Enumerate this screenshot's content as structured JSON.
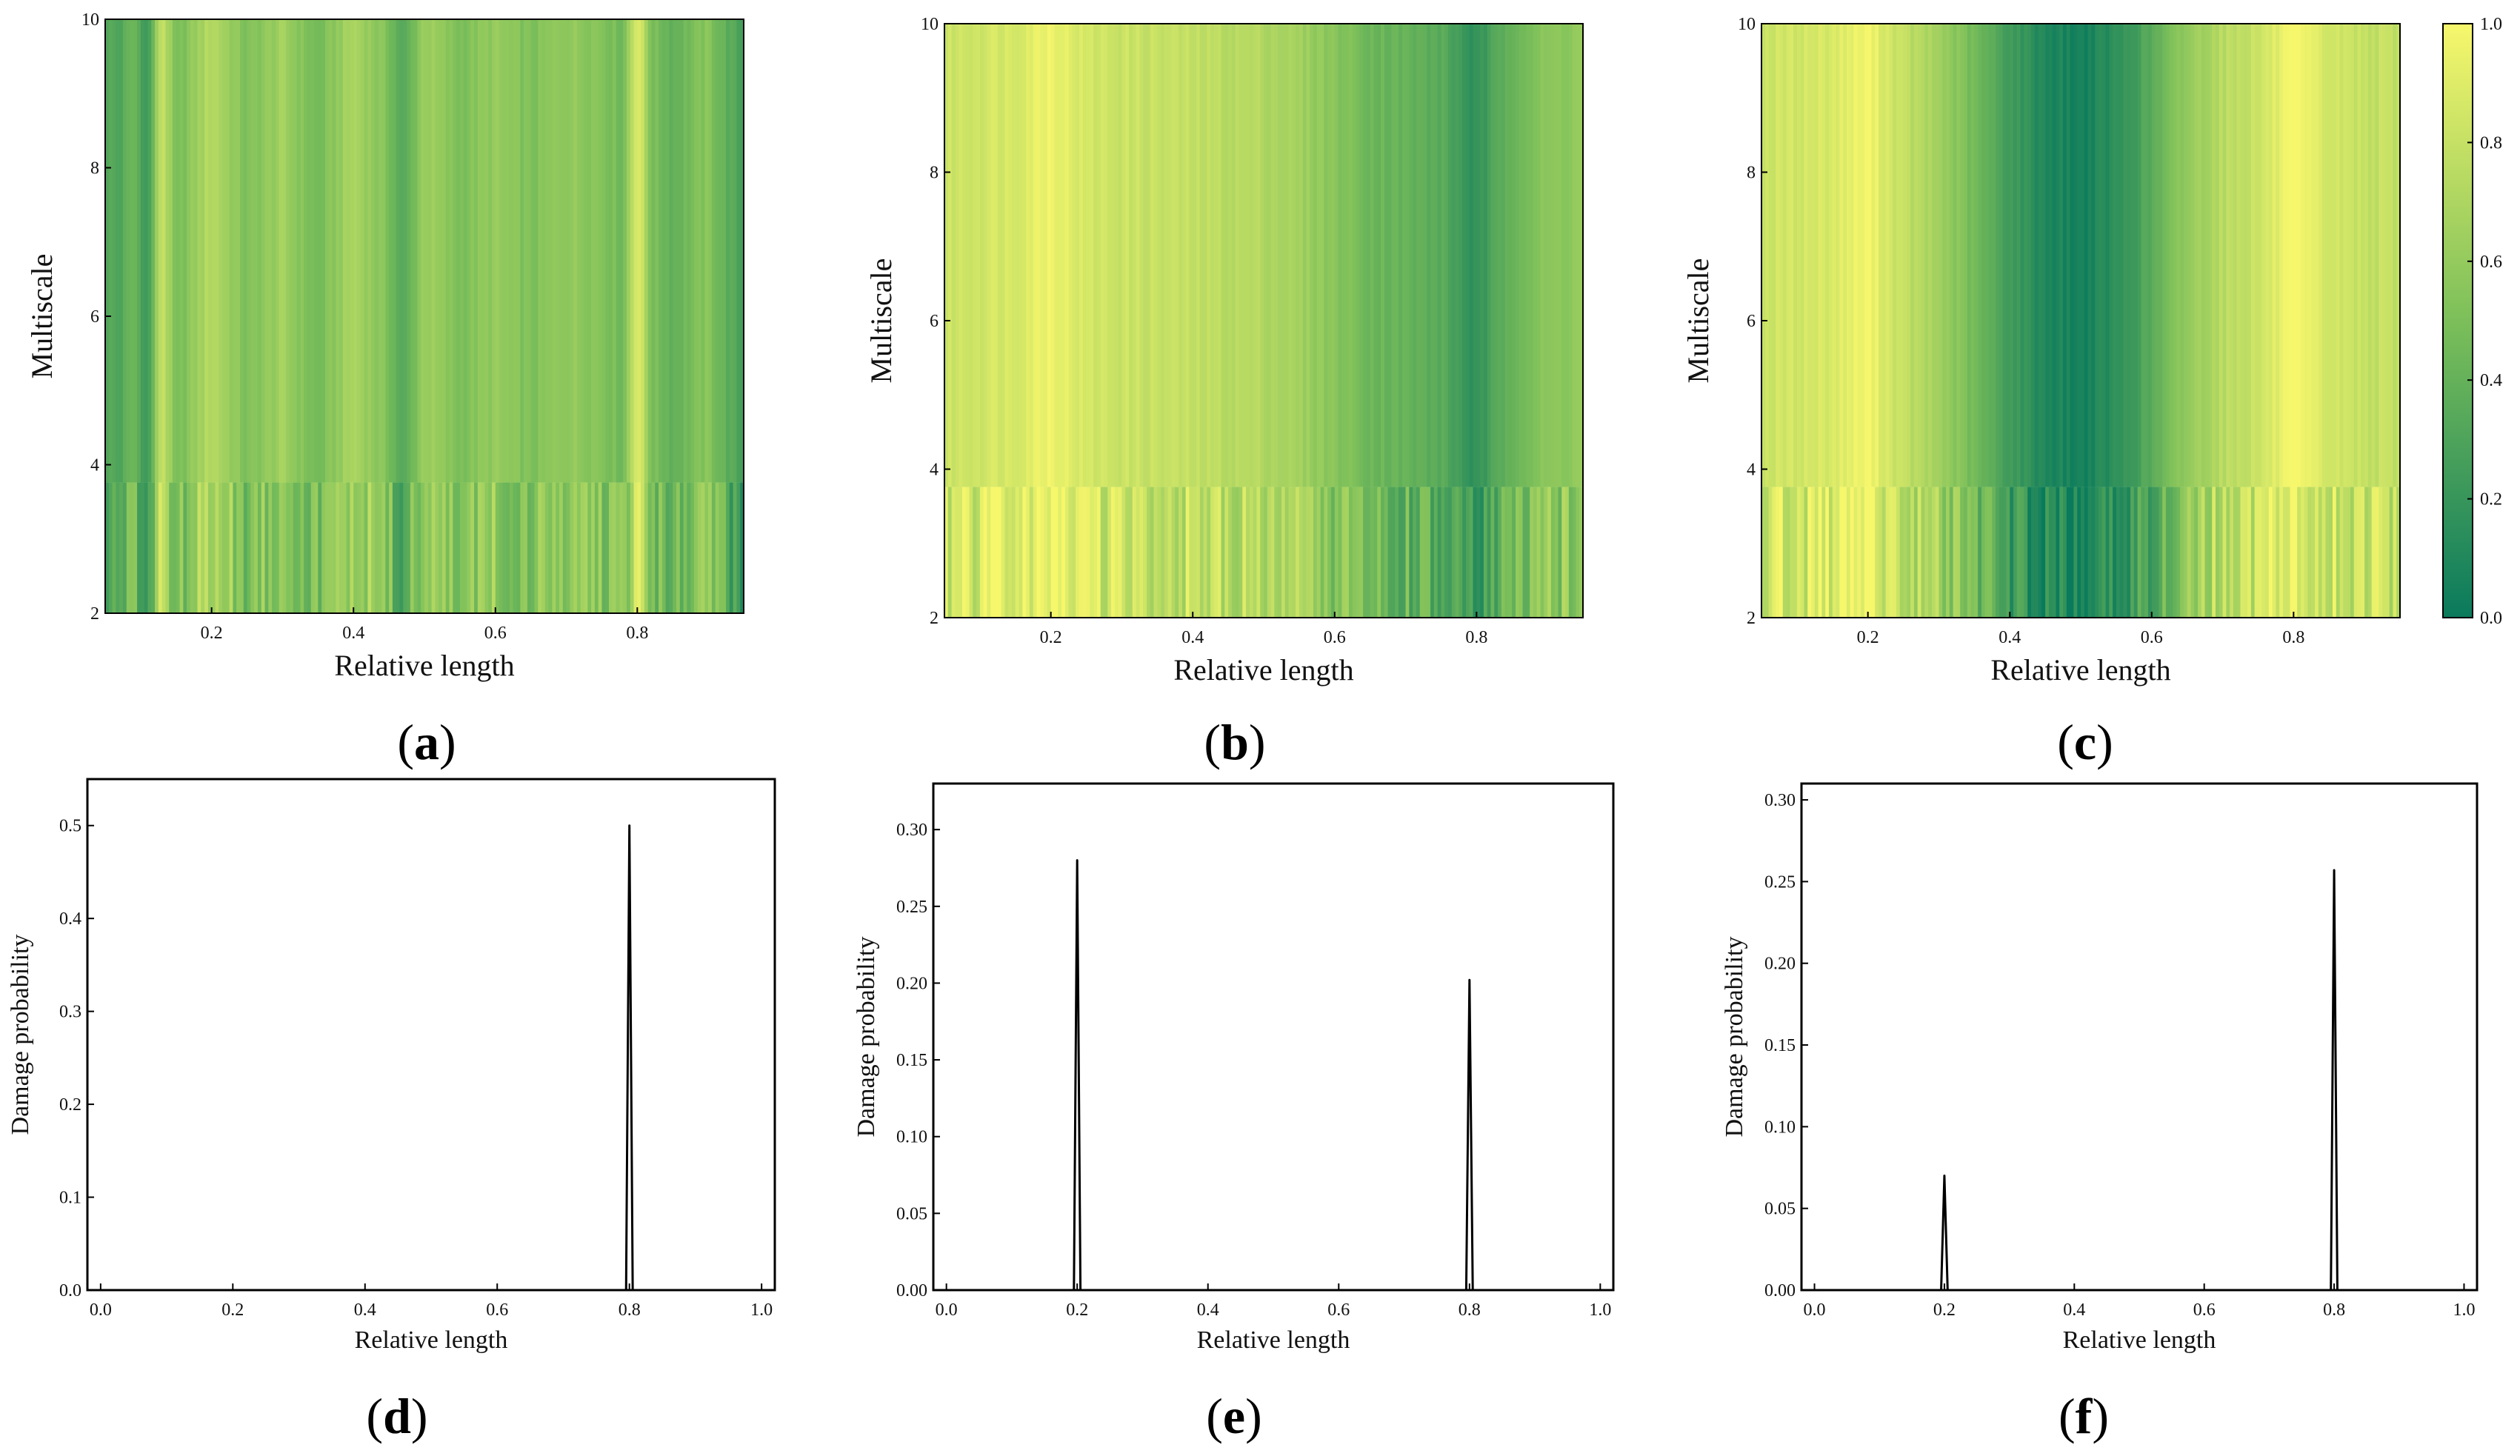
{
  "figure": {
    "panel_letters": [
      "a",
      "b",
      "c",
      "d",
      "e",
      "f"
    ],
    "paren_open": "(",
    "paren_close": ")"
  },
  "colors": {
    "cmap_low": "#0a7a5c",
    "cmap_mid": "#7cbf5a",
    "cmap_high": "#f7f76c",
    "line": "#000000",
    "axis": "#000000"
  },
  "chart_data": [
    {
      "id": "a",
      "type": "heatmap",
      "title": "",
      "xlabel": "Relative length",
      "ylabel": "Multiscale",
      "xlim": [
        0.05,
        0.95
      ],
      "ylim": [
        2,
        10
      ],
      "xticks": [
        0.2,
        0.4,
        0.6,
        0.8
      ],
      "xtick_labels": [
        "0.2",
        "0.4",
        "0.6",
        "0.8"
      ],
      "yticks": [
        2,
        4,
        6,
        8,
        10
      ],
      "ytick_labels": [
        "2",
        "4",
        "6",
        "8",
        "10"
      ],
      "color_range": [
        0.0,
        1.0
      ],
      "column_profile_x": [
        0.05,
        0.07,
        0.09,
        0.11,
        0.13,
        0.15,
        0.2,
        0.25,
        0.3,
        0.35,
        0.4,
        0.45,
        0.47,
        0.5,
        0.55,
        0.6,
        0.65,
        0.7,
        0.75,
        0.78,
        0.8,
        0.82,
        0.85,
        0.9,
        0.93,
        0.95
      ],
      "column_profile_value": [
        0.35,
        0.3,
        0.45,
        0.2,
        0.85,
        0.45,
        0.75,
        0.5,
        0.65,
        0.45,
        0.7,
        0.5,
        0.3,
        0.65,
        0.5,
        0.6,
        0.5,
        0.6,
        0.55,
        0.45,
        0.95,
        0.5,
        0.4,
        0.55,
        0.35,
        0.25
      ]
    },
    {
      "id": "b",
      "type": "heatmap",
      "title": "",
      "xlabel": "Relative length",
      "ylabel": "Multiscale",
      "xlim": [
        0.05,
        0.95
      ],
      "ylim": [
        2,
        10
      ],
      "xticks": [
        0.2,
        0.4,
        0.6,
        0.8
      ],
      "xtick_labels": [
        "0.2",
        "0.4",
        "0.6",
        "0.8"
      ],
      "yticks": [
        2,
        4,
        6,
        8,
        10
      ],
      "ytick_labels": [
        "2",
        "4",
        "6",
        "8",
        "10"
      ],
      "color_range": [
        0.0,
        1.0
      ],
      "column_profile_x": [
        0.05,
        0.1,
        0.15,
        0.2,
        0.25,
        0.3,
        0.35,
        0.4,
        0.45,
        0.5,
        0.55,
        0.6,
        0.65,
        0.7,
        0.75,
        0.8,
        0.85,
        0.9,
        0.95
      ],
      "column_profile_value": [
        0.82,
        0.85,
        0.88,
        0.98,
        0.85,
        0.82,
        0.8,
        0.78,
        0.75,
        0.72,
        0.65,
        0.55,
        0.45,
        0.4,
        0.35,
        0.15,
        0.45,
        0.55,
        0.6
      ]
    },
    {
      "id": "c",
      "type": "heatmap",
      "title": "",
      "xlabel": "Relative length",
      "ylabel": "Multiscale",
      "xlim": [
        0.05,
        0.95
      ],
      "ylim": [
        2,
        10
      ],
      "xticks": [
        0.2,
        0.4,
        0.6,
        0.8
      ],
      "xtick_labels": [
        "0.2",
        "0.4",
        "0.6",
        "0.8"
      ],
      "yticks": [
        2,
        4,
        6,
        8,
        10
      ],
      "ytick_labels": [
        "2",
        "4",
        "6",
        "8",
        "10"
      ],
      "color_range": [
        0.0,
        1.0
      ],
      "colorbar_ticks": [
        "0.0",
        "0.2",
        "0.4",
        "0.6",
        "0.8",
        "1.0"
      ],
      "column_profile_x": [
        0.05,
        0.1,
        0.15,
        0.2,
        0.25,
        0.3,
        0.35,
        0.4,
        0.45,
        0.5,
        0.55,
        0.6,
        0.65,
        0.7,
        0.75,
        0.8,
        0.85,
        0.9,
        0.95
      ],
      "column_profile_value": [
        0.82,
        0.85,
        0.88,
        0.98,
        0.78,
        0.65,
        0.45,
        0.25,
        0.1,
        0.05,
        0.15,
        0.35,
        0.6,
        0.75,
        0.82,
        0.98,
        0.85,
        0.8,
        0.78
      ]
    },
    {
      "id": "d",
      "type": "line",
      "title": "",
      "xlabel": "Relative length",
      "ylabel": "Damage probability",
      "xlim": [
        -0.02,
        1.02
      ],
      "ylim": [
        0,
        0.55
      ],
      "xticks": [
        0.0,
        0.2,
        0.4,
        0.6,
        0.8,
        1.0
      ],
      "xtick_labels": [
        "0.0",
        "0.2",
        "0.4",
        "0.6",
        "0.8",
        "1.0"
      ],
      "yticks": [
        0.0,
        0.1,
        0.2,
        0.3,
        0.4,
        0.5
      ],
      "ytick_labels": [
        "0.0",
        "0.1",
        "0.2",
        "0.3",
        "0.4",
        "0.5"
      ],
      "series": [
        {
          "name": "Damage probability",
          "x": [
            0.0,
            0.795,
            0.8,
            0.805,
            1.0
          ],
          "y": [
            0,
            0,
            0.5,
            0,
            0
          ]
        }
      ]
    },
    {
      "id": "e",
      "type": "line",
      "title": "",
      "xlabel": "Relative length",
      "ylabel": "Damage probability",
      "xlim": [
        -0.02,
        1.02
      ],
      "ylim": [
        0,
        0.33
      ],
      "xticks": [
        0.0,
        0.2,
        0.4,
        0.6,
        0.8,
        1.0
      ],
      "xtick_labels": [
        "0.0",
        "0.2",
        "0.4",
        "0.6",
        "0.8",
        "1.0"
      ],
      "yticks": [
        0.0,
        0.05,
        0.1,
        0.15,
        0.2,
        0.25,
        0.3
      ],
      "ytick_labels": [
        "0.00",
        "0.05",
        "0.10",
        "0.15",
        "0.20",
        "0.25",
        "0.30"
      ],
      "series": [
        {
          "name": "Damage probability",
          "x": [
            0.0,
            0.195,
            0.2,
            0.205,
            0.795,
            0.8,
            0.805,
            1.0
          ],
          "y": [
            0,
            0,
            0.28,
            0,
            0,
            0.202,
            0,
            0
          ]
        }
      ]
    },
    {
      "id": "f",
      "type": "line",
      "title": "",
      "xlabel": "Relative length",
      "ylabel": "Damage probability",
      "xlim": [
        -0.02,
        1.02
      ],
      "ylim": [
        0,
        0.31
      ],
      "xticks": [
        0.0,
        0.2,
        0.4,
        0.6,
        0.8,
        1.0
      ],
      "xtick_labels": [
        "0.0",
        "0.2",
        "0.4",
        "0.6",
        "0.8",
        "1.0"
      ],
      "yticks": [
        0.0,
        0.05,
        0.1,
        0.15,
        0.2,
        0.25,
        0.3
      ],
      "ytick_labels": [
        "0.00",
        "0.05",
        "0.10",
        "0.15",
        "0.20",
        "0.25",
        "0.30"
      ],
      "series": [
        {
          "name": "Damage probability",
          "x": [
            0.0,
            0.195,
            0.2,
            0.205,
            0.795,
            0.8,
            0.805,
            1.0
          ],
          "y": [
            0,
            0,
            0.07,
            0,
            0,
            0.257,
            0,
            0
          ]
        }
      ]
    }
  ]
}
